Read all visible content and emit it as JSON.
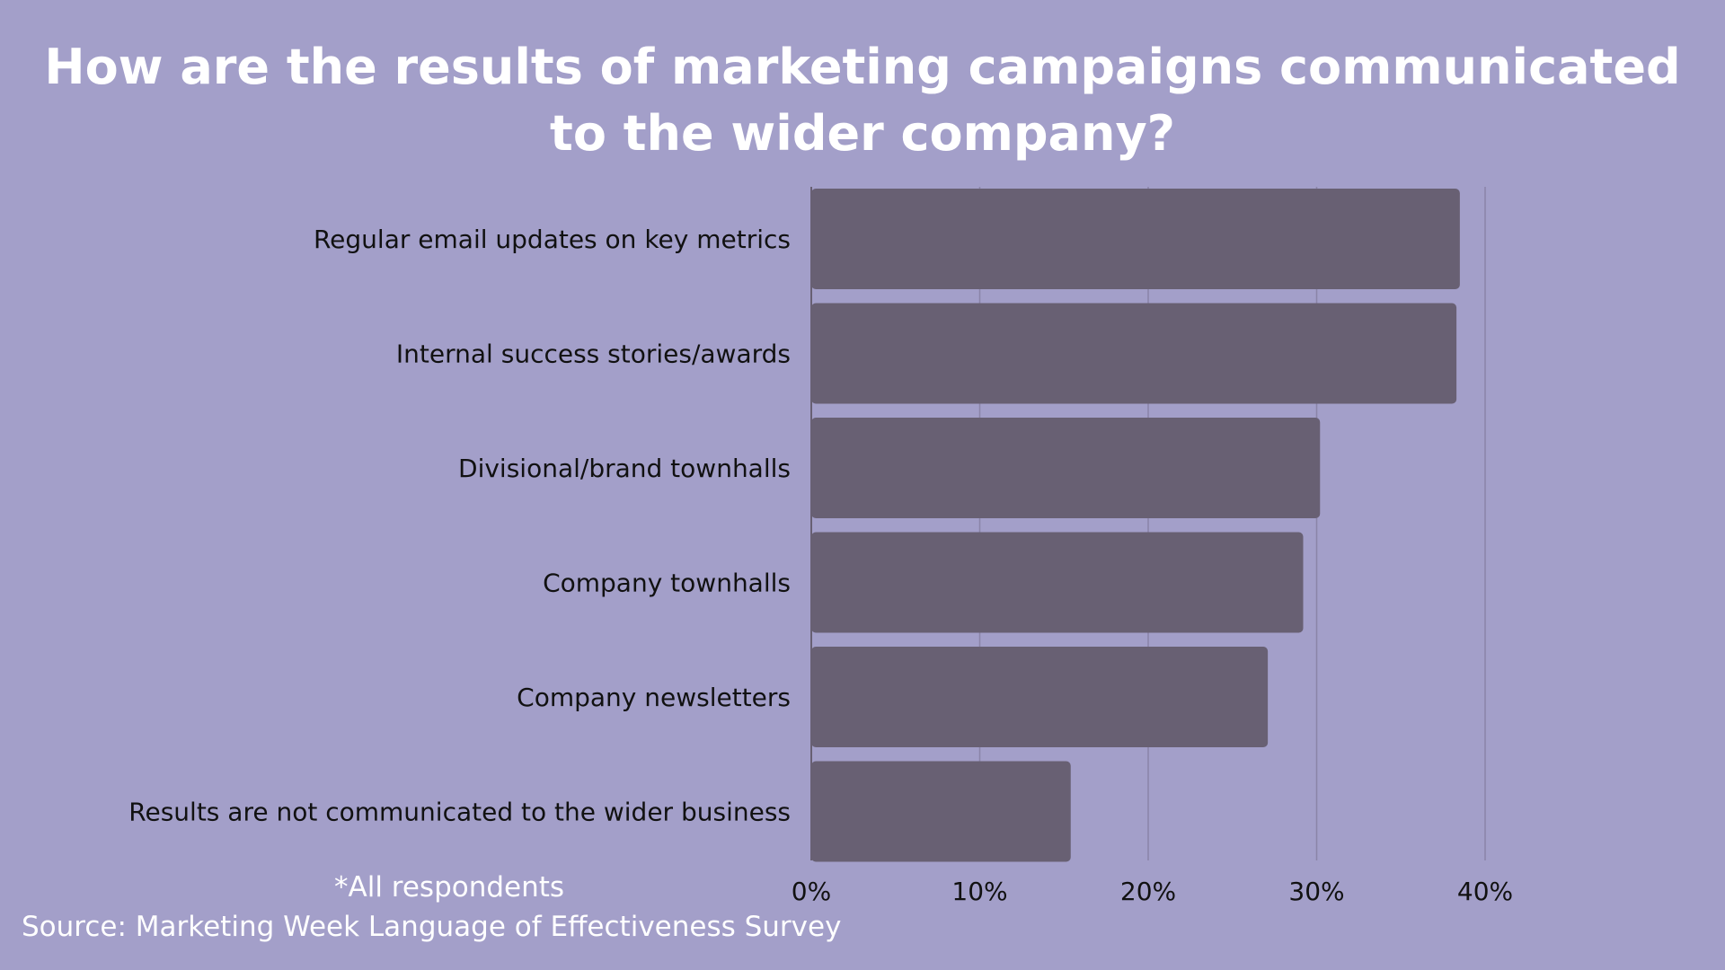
{
  "colors": {
    "background": "#a39fc9",
    "bar": "#686073",
    "gridline": "#8a84a8",
    "title_text": "#ffffff",
    "label_text": "#111111"
  },
  "chart_data": {
    "type": "bar",
    "orientation": "horizontal",
    "title": "How are the results of marketing campaigns communicated to the wider company?",
    "categories": [
      "Regular email updates on key metrics",
      "Internal success stories/awards",
      "Divisional/brand townhalls",
      "Company townhalls",
      "Company newsletters",
      "Results are not communicated to the wider business"
    ],
    "values": [
      38.5,
      38.3,
      30.2,
      29.2,
      27.1,
      15.4
    ],
    "value_unit": "%",
    "xlim": [
      0,
      40
    ],
    "xticks": [
      "0%",
      "10%",
      "20%",
      "30%",
      "40%"
    ],
    "grid": "vertical gridlines",
    "legend": "none",
    "footnote": "*All respondents",
    "source": "Source: Marketing Week Language of Effectiveness Survey"
  }
}
